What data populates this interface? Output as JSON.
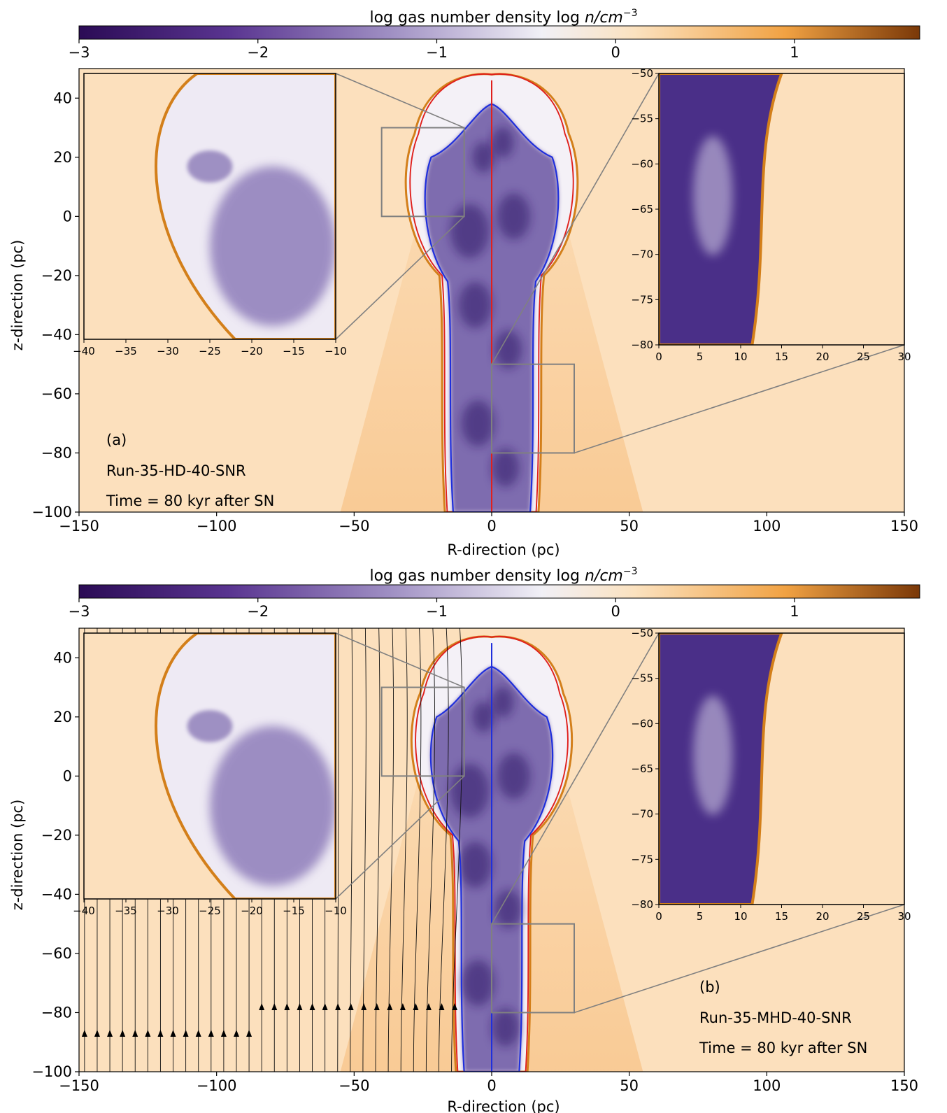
{
  "colors": {
    "background": "#fce0bd",
    "colormap": [
      "#2b0b55",
      "#5a3591",
      "#9f8fc3",
      "#f1f0f6",
      "#fbe2c0",
      "#f1a243",
      "#7a3808"
    ],
    "inner_contour": "#1f2fdc",
    "outer_contour": "#e0201c",
    "shell": "#d37f1a",
    "frame": "#808080"
  },
  "chart_data": [
    {
      "id": "a",
      "type": "heatmap",
      "colorbar": {
        "label": "log gas number density log",
        "label_math": "n/cm",
        "label_exp": "−3",
        "range": [
          -3,
          1.7
        ],
        "ticks": [
          "−3",
          "−2",
          "−1",
          "0",
          "1"
        ],
        "tick_values": [
          -3,
          -2,
          -1,
          0,
          1
        ]
      },
      "xlabel": "R-direction (pc)",
      "ylabel": "z-direction (pc)",
      "xlim": [
        -150,
        150
      ],
      "ylim": [
        -100,
        50
      ],
      "xticks": [
        "−150",
        "−100",
        "−50",
        "0",
        "50",
        "100",
        "150"
      ],
      "xtick_values": [
        -150,
        -100,
        -50,
        0,
        50,
        100,
        150
      ],
      "yticks": [
        "40",
        "20",
        "0",
        "−20",
        "−40",
        "−60",
        "−80",
        "−100"
      ],
      "ytick_values": [
        40,
        20,
        0,
        -20,
        -40,
        -60,
        -80,
        -100
      ],
      "annotations": [
        "(a)",
        "Run-35-HD-40-SNR",
        "Time = 80 kyr after SN"
      ],
      "remnant": {
        "head_top_z": 48,
        "head_half_width": 30,
        "stem_half_width": 17
      },
      "insets": [
        {
          "source_region": {
            "x": [
              -40,
              -10
            ],
            "z": [
              0,
              30
            ]
          },
          "xlim": [
            -40,
            -10
          ],
          "ylim": [
            0,
            30
          ],
          "xticks": [
            "−40",
            "−35",
            "−30",
            "−25",
            "−20",
            "−15",
            "−10"
          ],
          "xtick_values": [
            -40,
            -35,
            -30,
            -25,
            -20,
            -15,
            -10
          ],
          "yticks": [],
          "ytick_values": []
        },
        {
          "source_region": {
            "x": [
              0,
              30
            ],
            "z": [
              -80,
              -50
            ]
          },
          "xlim": [
            0,
            30
          ],
          "ylim": [
            -80,
            -50
          ],
          "xticks": [
            "0",
            "5",
            "10",
            "15",
            "20",
            "25",
            "30"
          ],
          "xtick_values": [
            0,
            5,
            10,
            15,
            20,
            25,
            30
          ],
          "yticks": [
            "−50",
            "−55",
            "−60",
            "−65",
            "−70",
            "−75",
            "−80"
          ],
          "ytick_values": [
            -50,
            -55,
            -60,
            -65,
            -70,
            -75,
            -80
          ]
        }
      ]
    },
    {
      "id": "b",
      "type": "heatmap",
      "colorbar": {
        "label": "log gas number density log",
        "label_math": "n/cm",
        "label_exp": "−3",
        "range": [
          -3,
          1.7
        ],
        "ticks": [
          "−3",
          "−2",
          "−1",
          "0",
          "1"
        ],
        "tick_values": [
          -3,
          -2,
          -1,
          0,
          1
        ]
      },
      "xlabel": "R-direction (pc)",
      "ylabel": "z-direction (pc)",
      "xlim": [
        -150,
        150
      ],
      "ylim": [
        -100,
        50
      ],
      "xticks": [
        "−150",
        "−100",
        "−50",
        "0",
        "50",
        "100",
        "150"
      ],
      "xtick_values": [
        -150,
        -100,
        -50,
        0,
        50,
        100,
        150
      ],
      "yticks": [
        "40",
        "20",
        "0",
        "−20",
        "−40",
        "−60",
        "−80",
        "−100"
      ],
      "ytick_values": [
        40,
        20,
        0,
        -20,
        -40,
        -60,
        -80,
        -100
      ],
      "annotations": [
        "(b)",
        "Run-35-MHD-40-SNR",
        "Time = 80 kyr after SN"
      ],
      "remnant": {
        "head_top_z": 47,
        "head_half_width": 28,
        "stem_half_width": 13
      },
      "field_lines": true,
      "insets": [
        {
          "source_region": {
            "x": [
              -40,
              -10
            ],
            "z": [
              0,
              30
            ]
          },
          "xlim": [
            -40,
            -10
          ],
          "ylim": [
            0,
            30
          ],
          "xticks": [
            "−40",
            "−35",
            "−30",
            "−25",
            "−20",
            "−15",
            "−10"
          ],
          "xtick_values": [
            -40,
            -35,
            -30,
            -25,
            -20,
            -15,
            -10
          ],
          "yticks": [],
          "ytick_values": []
        },
        {
          "source_region": {
            "x": [
              0,
              30
            ],
            "z": [
              -80,
              -50
            ]
          },
          "xlim": [
            0,
            30
          ],
          "ylim": [
            -80,
            -50
          ],
          "xticks": [
            "0",
            "5",
            "10",
            "15",
            "20",
            "25",
            "30"
          ],
          "xtick_values": [
            0,
            5,
            10,
            15,
            20,
            25,
            30
          ],
          "yticks": [
            "−50",
            "−55",
            "−60",
            "−65",
            "−70",
            "−75",
            "−80"
          ],
          "ytick_values": [
            -50,
            -55,
            -60,
            -65,
            -70,
            -75,
            -80
          ]
        }
      ]
    }
  ]
}
